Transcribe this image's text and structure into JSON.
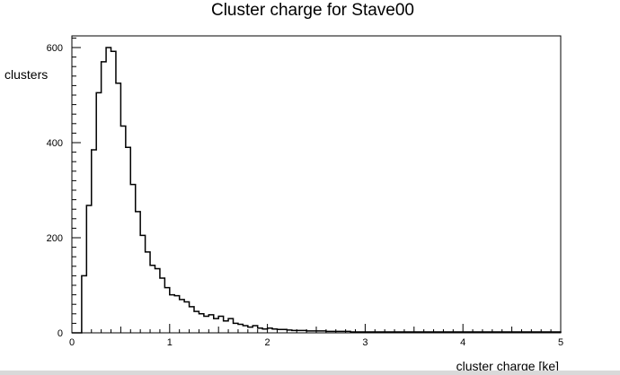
{
  "chart_data": {
    "type": "bar",
    "title": "Cluster charge for Stave00",
    "xlabel": "cluster charge [ke]",
    "ylabel": "clusters",
    "xlim": [
      0,
      5
    ],
    "ylim": [
      0,
      600
    ],
    "x_ticks": [
      "0",
      "1",
      "2",
      "3",
      "4",
      "5"
    ],
    "y_ticks": [
      "0",
      "200",
      "400",
      "600"
    ],
    "legend": "none",
    "grid": false,
    "bin_width": 0.05,
    "values": [
      0,
      0,
      120,
      268,
      385,
      505,
      570,
      600,
      592,
      525,
      435,
      390,
      312,
      255,
      205,
      170,
      142,
      135,
      115,
      95,
      80,
      78,
      70,
      65,
      55,
      45,
      40,
      35,
      38,
      30,
      35,
      25,
      30,
      20,
      18,
      15,
      12,
      15,
      10,
      8,
      10,
      8,
      7,
      7,
      6,
      5,
      5,
      5,
      4,
      4,
      4,
      4,
      3,
      3,
      3,
      3,
      3,
      2,
      2,
      2,
      2,
      2,
      2,
      2,
      2,
      2,
      2,
      2,
      2,
      2,
      2,
      2,
      2,
      2,
      2,
      2,
      2,
      2,
      2,
      2,
      2,
      2,
      2,
      2,
      2,
      2,
      2,
      2,
      2,
      2,
      2,
      2,
      2,
      2,
      2,
      2,
      2,
      2,
      2,
      2
    ]
  }
}
